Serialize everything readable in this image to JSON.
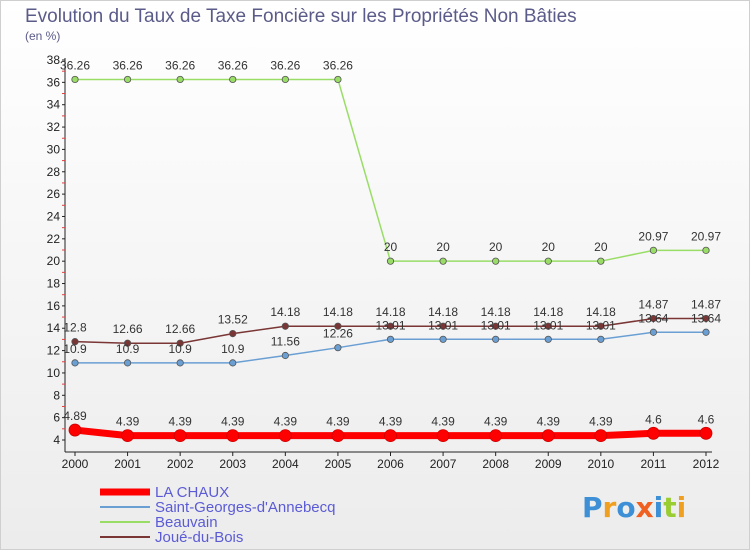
{
  "chart_data": {
    "type": "line",
    "title": "Evolution du Taux de Taxe Foncière sur les Propriétés Non Bâties",
    "subtitle": "(en %)",
    "x": [
      "2000",
      "2001",
      "2002",
      "2003",
      "2004",
      "2005",
      "2006",
      "2007",
      "2008",
      "2009",
      "2010",
      "2011",
      "2012"
    ],
    "yticks": [
      "4",
      "6",
      "8",
      "10",
      "12",
      "14",
      "16",
      "18",
      "20",
      "22",
      "24",
      "26",
      "28",
      "30",
      "32",
      "34",
      "36",
      "38"
    ],
    "ylim": [
      4,
      38
    ],
    "grid": false,
    "legend_position": "bottom-left",
    "series": [
      {
        "name": "LA CHAUX",
        "color": "#ff0000",
        "values": [
          4.89,
          4.39,
          4.39,
          4.39,
          4.39,
          4.39,
          4.39,
          4.39,
          4.39,
          4.39,
          4.39,
          4.6,
          4.6
        ],
        "labels": [
          "4.89",
          "4.39",
          "4.39",
          "4.39",
          "4.39",
          "4.39",
          "4.39",
          "4.39",
          "4.39",
          "4.39",
          "4.39",
          "4.6",
          "4.6"
        ]
      },
      {
        "name": "Saint-Georges-d'Annebecq",
        "color": "#6a9fd4",
        "values": [
          10.9,
          10.9,
          10.9,
          10.9,
          11.56,
          12.26,
          13.01,
          13.01,
          13.01,
          13.01,
          13.01,
          13.64,
          13.64
        ],
        "labels": [
          "10.9",
          "10.9",
          "10.9",
          "10.9",
          "11.56",
          "12.26",
          "13.01",
          "13.01",
          "13.01",
          "13.01",
          "13.01",
          "13.64",
          "13.64"
        ]
      },
      {
        "name": "Beauvain",
        "color": "#99dd66",
        "values": [
          36.26,
          36.26,
          36.26,
          36.26,
          36.26,
          36.26,
          20,
          20,
          20,
          20,
          20,
          20.97,
          20.97
        ],
        "labels": [
          "36.26",
          "36.26",
          "36.26",
          "36.26",
          "36.26",
          "36.26",
          "20",
          "20",
          "20",
          "20",
          "20",
          "20.97",
          "20.97"
        ]
      },
      {
        "name": "Joué-du-Bois",
        "color": "#7a3535",
        "values": [
          12.8,
          12.66,
          12.66,
          13.52,
          14.18,
          14.18,
          14.18,
          14.18,
          14.18,
          14.18,
          14.18,
          14.87,
          14.87
        ],
        "labels": [
          "12.8",
          "12.66",
          "12.66",
          "13.52",
          "14.18",
          "14.18",
          "14.18",
          "14.18",
          "14.18",
          "14.18",
          "14.18",
          "14.87",
          "14.87"
        ]
      }
    ]
  },
  "logo": {
    "text": "Proxiti"
  }
}
